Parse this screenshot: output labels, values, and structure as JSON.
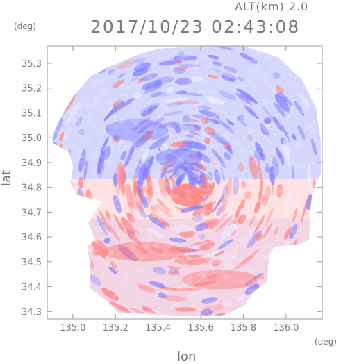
{
  "header": {
    "altitude_label": "ALT(km) 2.0",
    "datetime": "2017/10/23 02:43:08"
  },
  "axes": {
    "y_unit": "(deg)",
    "x_unit": "(deg)",
    "y_title": "lat",
    "x_title": "lon"
  },
  "map": {
    "lon_range": [
      134.88,
      136.17
    ],
    "lat_range": [
      34.27,
      35.37
    ],
    "lon_ticks": [
      "135.0",
      "135.2",
      "135.4",
      "135.6",
      "135.8",
      "136.0"
    ],
    "lat_ticks": [
      "34.3",
      "34.4",
      "34.5",
      "34.6",
      "34.7",
      "34.8",
      "34.9",
      "35.0",
      "35.1",
      "35.2",
      "35.3"
    ],
    "radar_center": {
      "lon": 135.53,
      "lat": 34.82
    },
    "colors": {
      "positive": "#ff8080",
      "negative": "#7f7fff",
      "neutral": "#ececff",
      "frame": "#9a9a9a"
    }
  }
}
